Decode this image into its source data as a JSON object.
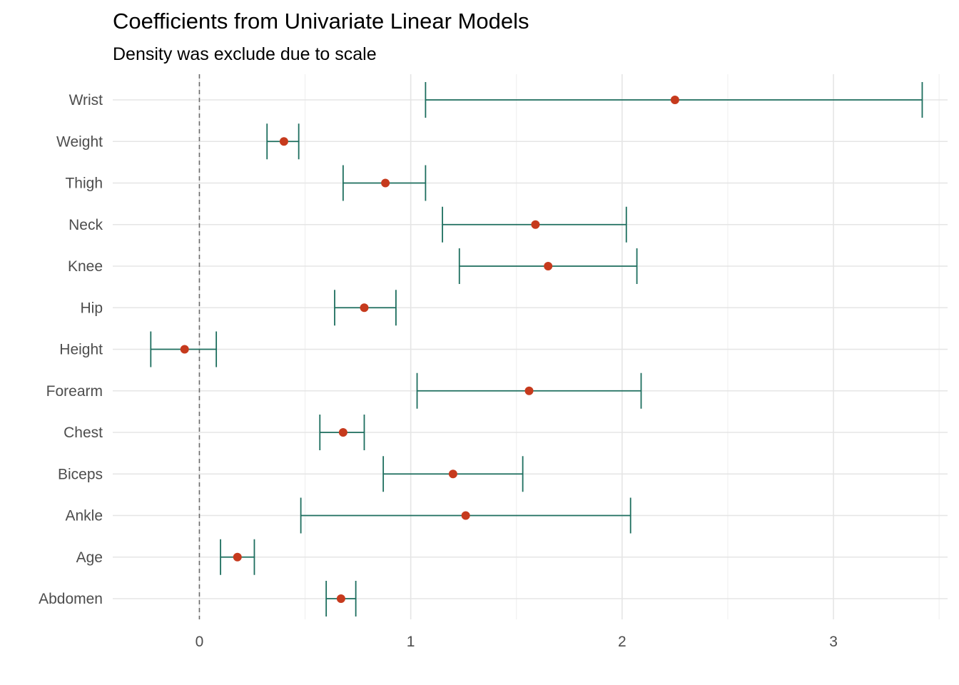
{
  "chart_data": {
    "type": "errorbar",
    "title": "Coefficients from Univariate Linear Models",
    "subtitle": "Density was exclude due to scale",
    "xlabel": "",
    "ylabel": "",
    "xlim": [
      -0.41,
      3.54
    ],
    "x_ticks": [
      0,
      1,
      2,
      3
    ],
    "x_tick_labels": [
      "0",
      "1",
      "2",
      "3"
    ],
    "reference_line": 0,
    "grid": true,
    "categories": [
      "Abdomen",
      "Age",
      "Ankle",
      "Biceps",
      "Chest",
      "Forearm",
      "Height",
      "Hip",
      "Knee",
      "Neck",
      "Thigh",
      "Weight",
      "Wrist"
    ],
    "estimate": [
      0.67,
      0.18,
      1.26,
      1.2,
      0.68,
      1.56,
      -0.07,
      0.78,
      1.65,
      1.59,
      0.88,
      0.4,
      2.25
    ],
    "lower": [
      0.6,
      0.1,
      0.48,
      0.87,
      0.57,
      1.03,
      -0.23,
      0.64,
      1.23,
      1.15,
      0.68,
      0.32,
      1.07
    ],
    "upper": [
      0.74,
      0.26,
      2.04,
      1.53,
      0.78,
      2.09,
      0.08,
      0.93,
      2.07,
      2.02,
      1.07,
      0.47,
      3.42
    ],
    "colors": {
      "point": "#c63a1d",
      "errorbar": "#1d6e5e",
      "reference_line": "#6b6b6b",
      "grid_major": "#e5e5e5",
      "grid_minor": "#f0f0f0"
    }
  }
}
